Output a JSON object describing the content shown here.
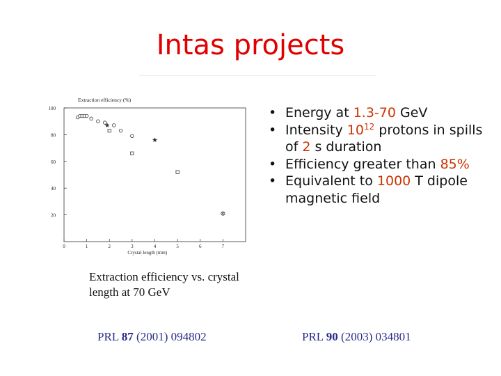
{
  "slide": {
    "title": "Intas projects",
    "caption": "Extraction efficiency vs. crystal length at 70 GeV",
    "bullets": [
      {
        "parts": [
          {
            "t": "Energy at ",
            "h": false
          },
          {
            "t": "1.3-70",
            "h": true
          },
          {
            "t": " GeV",
            "h": false
          }
        ]
      },
      {
        "parts": [
          {
            "t": "Intensity ",
            "h": false
          },
          {
            "t": "10",
            "h": true
          },
          {
            "t": "12",
            "h": true,
            "sup": true
          },
          {
            "t": " protons in spills of ",
            "h": false
          },
          {
            "t": "2",
            "h": true
          },
          {
            "t": " s duration",
            "h": false
          }
        ]
      },
      {
        "parts": [
          {
            "t": "Efficiency greater than ",
            "h": false
          },
          {
            "t": "85%",
            "h": true
          }
        ]
      },
      {
        "parts": [
          {
            "t": "Equivalent to ",
            "h": false
          },
          {
            "t": "1000",
            "h": true
          },
          {
            "t": " T dipole magnetic field",
            "h": false
          }
        ]
      }
    ],
    "refs": [
      {
        "journal": "PRL ",
        "volume": "87",
        "rest": " (2001) 094802"
      },
      {
        "journal": "PRL ",
        "volume": "90",
        "rest": " (2003) 034801"
      }
    ],
    "colors": {
      "title": "#e00000",
      "highlight": "#cc3300",
      "reference": "#2a2a8c"
    }
  },
  "chart_data": {
    "type": "scatter",
    "title": "",
    "ylabel": "Extraction efficiency (%)",
    "xlabel": "Crystal length (mm)",
    "xlim": [
      0,
      8
    ],
    "ylim": [
      0,
      100
    ],
    "xticks": [
      "0",
      "1",
      "2",
      "3",
      "4",
      "5",
      "6",
      "7"
    ],
    "yticks": [
      "20",
      "40",
      "60",
      "80",
      "100"
    ],
    "grid": false,
    "series": [
      {
        "marker": "circle",
        "points": [
          [
            0.6,
            93
          ],
          [
            0.7,
            94
          ],
          [
            0.8,
            94
          ],
          [
            0.9,
            94
          ],
          [
            1.0,
            94
          ],
          [
            1.2,
            92
          ],
          [
            1.5,
            90
          ],
          [
            1.8,
            89
          ],
          [
            2.2,
            87
          ],
          [
            2.5,
            83
          ],
          [
            3.0,
            79
          ]
        ]
      },
      {
        "marker": "star",
        "points": [
          [
            1.9,
            87
          ],
          [
            4.0,
            76
          ]
        ]
      },
      {
        "marker": "square",
        "points": [
          [
            2.0,
            83
          ],
          [
            3.0,
            66
          ],
          [
            5.0,
            52
          ]
        ]
      },
      {
        "marker": "crossed-circle",
        "points": [
          [
            7.0,
            21
          ]
        ]
      }
    ]
  }
}
